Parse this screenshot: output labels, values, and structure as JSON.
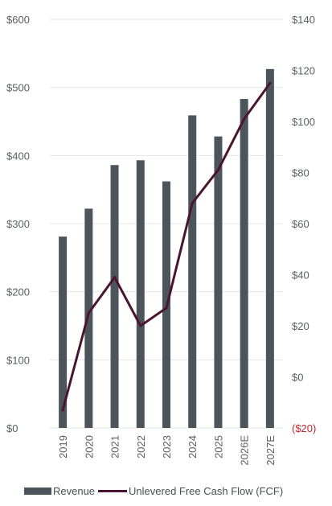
{
  "chart_data": {
    "type": "bar+line",
    "categories": [
      "2019",
      "2020",
      "2021",
      "2022",
      "2023",
      "2024",
      "2025",
      "2026E",
      "2027E"
    ],
    "series": [
      {
        "name": "Revenue",
        "type": "bar",
        "axis": "left",
        "color": "#4b555b",
        "values": [
          281,
          322,
          386,
          393,
          362,
          459,
          428,
          483,
          527
        ]
      },
      {
        "name": "Unlevered Free Cash Flow (FCF)",
        "type": "line",
        "axis": "right",
        "color": "#4a1530",
        "values": [
          -13,
          25,
          39,
          20,
          27,
          68,
          81,
          101,
          115
        ]
      }
    ],
    "left_axis": {
      "ylim": [
        0,
        600
      ],
      "ticks": [
        0,
        100,
        200,
        300,
        400,
        500,
        600
      ],
      "tick_labels": [
        "$0",
        "$100",
        "$200",
        "$300",
        "$400",
        "$500",
        "$600"
      ]
    },
    "right_axis": {
      "ylim": [
        -20,
        140
      ],
      "ticks": [
        -20,
        0,
        20,
        40,
        60,
        80,
        100,
        120,
        140
      ],
      "tick_labels": [
        "($20)",
        "$0",
        "$20",
        "$40",
        "$60",
        "$80",
        "$100",
        "$120",
        "$140"
      ],
      "negative_color": "#c0272d"
    },
    "grid": "horizontal",
    "legend_position": "bottom"
  }
}
